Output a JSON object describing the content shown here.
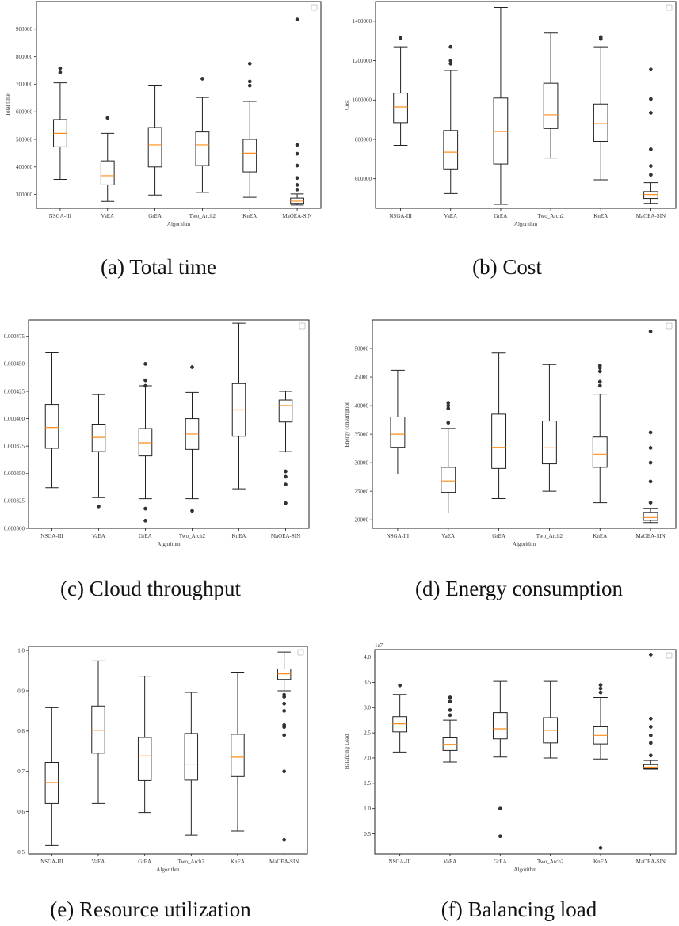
{
  "figure": {
    "captions": [
      "(a) Total time",
      "(b) Cost",
      "(c) Cloud throughput",
      "(d) Energy consumption",
      "(e) Resource utilization",
      "(f) Balancing load"
    ]
  },
  "chart_data": [
    {
      "type": "box",
      "caption": "(a) Total time",
      "xlabel": "Algorithm",
      "ylabel": "Total time",
      "categories": [
        "NSGA-III",
        "VaEA",
        "GrEA",
        "Two_Arch2",
        "KnEA",
        "MaOEA-SIN"
      ],
      "ylim": [
        250000,
        1000000
      ],
      "yticks": [
        300000,
        400000,
        500000,
        600000,
        700000,
        800000,
        900000
      ],
      "ytick_labels": [
        "300000",
        "400000",
        "500000",
        "600000",
        "700000",
        "800000",
        "900000"
      ],
      "boxes": [
        {
          "whislo": 355000,
          "q1": 473000,
          "med": 522000,
          "q3": 572000,
          "whishi": 705000,
          "fliers": [
            743000,
            758000
          ]
        },
        {
          "whislo": 275000,
          "q1": 335000,
          "med": 368000,
          "q3": 422000,
          "whishi": 522000,
          "fliers": [
            578000
          ]
        },
        {
          "whislo": 298000,
          "q1": 400000,
          "med": 480000,
          "q3": 543000,
          "whishi": 697000,
          "fliers": []
        },
        {
          "whislo": 308000,
          "q1": 405000,
          "med": 480000,
          "q3": 527000,
          "whishi": 652000,
          "fliers": [
            720000
          ]
        },
        {
          "whislo": 290000,
          "q1": 382000,
          "med": 450000,
          "q3": 500000,
          "whishi": 638000,
          "fliers": [
            695000,
            710000,
            775000
          ]
        },
        {
          "whislo": 262000,
          "q1": 268000,
          "med": 276000,
          "q3": 287000,
          "whishi": 302000,
          "fliers": [
            318000,
            335000,
            360000,
            405000,
            448000,
            480000,
            935000
          ]
        }
      ]
    },
    {
      "type": "box",
      "caption": "(b) Cost",
      "xlabel": "Algorithm",
      "ylabel": "Cost",
      "categories": [
        "NSGA-III",
        "VaEA",
        "GrEA",
        "Two_Arch2",
        "KnEA",
        "MaOEA-SIN"
      ],
      "ylim": [
        450000,
        1500000
      ],
      "yticks": [
        600000,
        800000,
        1000000,
        1200000,
        1400000
      ],
      "ytick_labels": [
        "600000",
        "800000",
        "1000000",
        "1200000",
        "1400000"
      ],
      "boxes": [
        {
          "whislo": 770000,
          "q1": 885000,
          "med": 965000,
          "q3": 1035000,
          "whishi": 1270000,
          "fliers": [
            1315000
          ]
        },
        {
          "whislo": 525000,
          "q1": 650000,
          "med": 735000,
          "q3": 845000,
          "whishi": 1150000,
          "fliers": [
            1185000,
            1200000,
            1270000
          ]
        },
        {
          "whislo": 470000,
          "q1": 675000,
          "med": 840000,
          "q3": 1010000,
          "whishi": 1470000,
          "fliers": []
        },
        {
          "whislo": 705000,
          "q1": 855000,
          "med": 925000,
          "q3": 1085000,
          "whishi": 1340000,
          "fliers": []
        },
        {
          "whislo": 595000,
          "q1": 790000,
          "med": 880000,
          "q3": 980000,
          "whishi": 1270000,
          "fliers": [
            1310000,
            1320000
          ]
        },
        {
          "whislo": 475000,
          "q1": 500000,
          "med": 520000,
          "q3": 535000,
          "whishi": 580000,
          "fliers": [
            620000,
            665000,
            750000,
            935000,
            1005000,
            1155000
          ]
        }
      ]
    },
    {
      "type": "box",
      "caption": "(c) Cloud throughput",
      "xlabel": "Algorithm",
      "ylabel": "",
      "categories": [
        "NSGA-III",
        "VaEA",
        "GrEA",
        "Two_Arch2",
        "KnEA",
        "MaOEA-SIN"
      ],
      "ylim": [
        0.0003,
        0.00049
      ],
      "yticks": [
        0.0003,
        0.000325,
        0.00035,
        0.000375,
        0.0004,
        0.000425,
        0.00045,
        0.000475
      ],
      "ytick_labels": [
        "0.000300",
        "0.000325",
        "0.000350",
        "0.000375",
        "0.000400",
        "0.000425",
        "0.000450",
        "0.000475"
      ],
      "boxes": [
        {
          "whislo": 0.000337,
          "q1": 0.000373,
          "med": 0.000392,
          "q3": 0.000413,
          "whishi": 0.00046,
          "fliers": []
        },
        {
          "whislo": 0.000328,
          "q1": 0.00037,
          "med": 0.000383,
          "q3": 0.000395,
          "whishi": 0.000422,
          "fliers": [
            0.00032
          ]
        },
        {
          "whislo": 0.000327,
          "q1": 0.000366,
          "med": 0.000378,
          "q3": 0.000391,
          "whishi": 0.00043,
          "fliers": [
            0.000307,
            0.000318,
            0.00043,
            0.000435,
            0.00045
          ]
        },
        {
          "whislo": 0.000327,
          "q1": 0.000372,
          "med": 0.000386,
          "q3": 0.0004,
          "whishi": 0.000424,
          "fliers": [
            0.000316,
            0.000447
          ]
        },
        {
          "whislo": 0.000336,
          "q1": 0.000384,
          "med": 0.000408,
          "q3": 0.000432,
          "whishi": 0.000487,
          "fliers": []
        },
        {
          "whislo": 0.00037,
          "q1": 0.000397,
          "med": 0.000412,
          "q3": 0.000417,
          "whishi": 0.000425,
          "fliers": [
            0.000323,
            0.00034,
            0.000347,
            0.000352
          ]
        }
      ]
    },
    {
      "type": "box",
      "caption": "(d) Energy consumption",
      "xlabel": "Algorithm",
      "ylabel": "Energy consumption",
      "categories": [
        "NSGA-III",
        "VaEA",
        "GrEA",
        "Two_Arch2",
        "KnEA",
        "MaOEA-SIN"
      ],
      "ylim": [
        18500,
        55000
      ],
      "yticks": [
        20000,
        25000,
        30000,
        35000,
        40000,
        45000,
        50000
      ],
      "ytick_labels": [
        "20000",
        "25000",
        "30000",
        "35000",
        "40000",
        "45000",
        "50000"
      ],
      "boxes": [
        {
          "whislo": 28000,
          "q1": 32700,
          "med": 35000,
          "q3": 38000,
          "whishi": 46200,
          "fliers": []
        },
        {
          "whislo": 21200,
          "q1": 24800,
          "med": 26800,
          "q3": 29200,
          "whishi": 36000,
          "fliers": [
            37000,
            39500,
            40000,
            40500
          ]
        },
        {
          "whislo": 23700,
          "q1": 29000,
          "med": 32700,
          "q3": 38500,
          "whishi": 49200,
          "fliers": []
        },
        {
          "whislo": 25000,
          "q1": 29800,
          "med": 32600,
          "q3": 37300,
          "whishi": 47200,
          "fliers": []
        },
        {
          "whislo": 23000,
          "q1": 29200,
          "med": 31500,
          "q3": 34500,
          "whishi": 42000,
          "fliers": [
            43500,
            44200,
            46000,
            46600,
            47000
          ]
        },
        {
          "whislo": 19500,
          "q1": 19900,
          "med": 20400,
          "q3": 21300,
          "whishi": 22000,
          "fliers": [
            23000,
            26700,
            30000,
            32600,
            35300,
            53000
          ]
        }
      ]
    },
    {
      "type": "box",
      "caption": "(e) Resource utilization",
      "xlabel": "Algorithm",
      "ylabel": "",
      "categories": [
        "NSGA-III",
        "VaEA",
        "GrEA",
        "Two_Arch2",
        "KnEA",
        "MaOEA-SIN"
      ],
      "ylim": [
        0.495,
        1.01
      ],
      "yticks": [
        0.5,
        0.6,
        0.7,
        0.8,
        0.9,
        1.0
      ],
      "ytick_labels": [
        "0.5",
        "0.6",
        "0.7",
        "0.8",
        "0.9",
        "1.0"
      ],
      "boxes": [
        {
          "whislo": 0.516,
          "q1": 0.62,
          "med": 0.672,
          "q3": 0.722,
          "whishi": 0.858,
          "fliers": []
        },
        {
          "whislo": 0.62,
          "q1": 0.745,
          "med": 0.802,
          "q3": 0.862,
          "whishi": 0.974,
          "fliers": []
        },
        {
          "whislo": 0.598,
          "q1": 0.677,
          "med": 0.738,
          "q3": 0.784,
          "whishi": 0.936,
          "fliers": []
        },
        {
          "whislo": 0.542,
          "q1": 0.678,
          "med": 0.718,
          "q3": 0.794,
          "whishi": 0.896,
          "fliers": []
        },
        {
          "whislo": 0.552,
          "q1": 0.687,
          "med": 0.735,
          "q3": 0.792,
          "whishi": 0.946,
          "fliers": []
        },
        {
          "whislo": 0.9,
          "q1": 0.928,
          "med": 0.942,
          "q3": 0.954,
          "whishi": 0.996,
          "fliers": [
            0.53,
            0.7,
            0.79,
            0.81,
            0.815,
            0.85,
            0.868,
            0.885,
            0.89
          ]
        }
      ]
    },
    {
      "type": "box",
      "caption": "(f) Balancing load",
      "xlabel": "Algorithm",
      "ylabel": "Balancing Load",
      "scale_note": "1e7",
      "categories": [
        "NSGA-III",
        "VaEA",
        "GrEA",
        "Two_Arch2",
        "KnEA",
        "MaOEA-SIN"
      ],
      "ylim": [
        0.1,
        4.15
      ],
      "yticks": [
        0.5,
        1.0,
        1.5,
        2.0,
        2.5,
        3.0,
        3.5,
        4.0
      ],
      "ytick_labels": [
        "0.5",
        "1.0",
        "1.5",
        "2.0",
        "2.5",
        "3.0",
        "3.5",
        "4.0"
      ],
      "boxes": [
        {
          "whislo": 2.12,
          "q1": 2.52,
          "med": 2.68,
          "q3": 2.82,
          "whishi": 3.26,
          "fliers": [
            3.44
          ]
        },
        {
          "whislo": 1.92,
          "q1": 2.15,
          "med": 2.27,
          "q3": 2.4,
          "whishi": 2.75,
          "fliers": [
            2.85,
            2.95,
            3.12,
            3.2
          ]
        },
        {
          "whislo": 2.02,
          "q1": 2.38,
          "med": 2.58,
          "q3": 2.9,
          "whishi": 3.52,
          "fliers": [
            0.45,
            1.0
          ]
        },
        {
          "whislo": 2.0,
          "q1": 2.3,
          "med": 2.55,
          "q3": 2.8,
          "whishi": 3.52,
          "fliers": []
        },
        {
          "whislo": 1.98,
          "q1": 2.28,
          "med": 2.45,
          "q3": 2.62,
          "whishi": 3.2,
          "fliers": [
            0.22,
            3.3,
            3.38,
            3.45
          ]
        },
        {
          "whislo": 1.78,
          "q1": 1.79,
          "med": 1.82,
          "q3": 1.87,
          "whishi": 1.95,
          "fliers": [
            2.05,
            2.3,
            2.45,
            2.62,
            2.78,
            4.05
          ]
        }
      ]
    }
  ]
}
